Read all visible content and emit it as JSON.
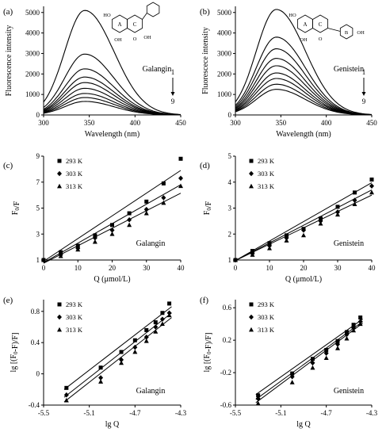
{
  "chart_data": [
    {
      "panel_label": "(a)",
      "type": "line",
      "xlabel": "Wavelength (nm)",
      "ylabel": "Fluorescence intensity",
      "compound": "Galangin",
      "xticks": [
        "300",
        "350",
        "400",
        "450"
      ],
      "yticks": [
        "0",
        "1000",
        "2000",
        "3000",
        "4000",
        "5000"
      ],
      "xlim": [
        300,
        450
      ],
      "ylim": [
        0,
        5300
      ],
      "arrow_start": "1",
      "arrow_end": "9",
      "peak_x": 345,
      "series": [
        {
          "peak": 5100
        },
        {
          "peak": 2970
        },
        {
          "peak": 2250
        },
        {
          "peak": 1850
        },
        {
          "peak": 1580
        },
        {
          "peak": 1300
        },
        {
          "peak": 1050
        },
        {
          "peak": 850
        },
        {
          "peak": 660
        }
      ]
    },
    {
      "panel_label": "(b)",
      "type": "line",
      "xlabel": "Wavelength (nm)",
      "ylabel": "Fluorescece intensity",
      "compound": "Genistein",
      "xticks": [
        "300",
        "350",
        "400",
        "450"
      ],
      "yticks": [
        "0",
        "1000",
        "2000",
        "3000",
        "4000",
        "5000"
      ],
      "xlim": [
        300,
        450
      ],
      "ylim": [
        0,
        5300
      ],
      "arrow_start": "1",
      "arrow_end": "9",
      "peak_x": 345,
      "series": [
        {
          "peak": 5150
        },
        {
          "peak": 3800
        },
        {
          "peak": 3230
        },
        {
          "peak": 2760
        },
        {
          "peak": 2400
        },
        {
          "peak": 2050
        },
        {
          "peak": 1780
        },
        {
          "peak": 1500
        },
        {
          "peak": 1250
        }
      ]
    },
    {
      "panel_label": "(c)",
      "type": "scatter",
      "xlabel": "Q (μmol/L)",
      "ylabel": "F0/F",
      "compound": "Galangin",
      "xticks": [
        "0",
        "10",
        "20",
        "30",
        "40"
      ],
      "yticks": [
        "1",
        "3",
        "5",
        "7",
        "9"
      ],
      "xlim": [
        0,
        40
      ],
      "ylim": [
        1,
        9
      ],
      "series": [
        {
          "name": "293 K",
          "marker": "square",
          "x": [
            0,
            5,
            10,
            15,
            20,
            25,
            30,
            35,
            40
          ],
          "y": [
            1,
            1.6,
            2.1,
            2.9,
            3.7,
            4.6,
            5.5,
            6.9,
            8.8
          ]
        },
        {
          "name": "303 K",
          "marker": "diamond",
          "x": [
            0,
            5,
            10,
            15,
            20,
            25,
            30,
            35,
            40
          ],
          "y": [
            1,
            1.4,
            1.9,
            2.7,
            3.3,
            4.1,
            4.9,
            5.8,
            7.3
          ]
        },
        {
          "name": "313 K",
          "marker": "triangle",
          "x": [
            0,
            5,
            10,
            15,
            20,
            25,
            30,
            35,
            40
          ],
          "y": [
            1,
            1.3,
            1.8,
            2.4,
            3.0,
            3.7,
            4.6,
            5.4,
            6.7
          ]
        }
      ],
      "fits": [
        [
          0.9,
          0.175
        ],
        [
          0.8,
          0.15
        ],
        [
          0.75,
          0.135
        ]
      ]
    },
    {
      "panel_label": "(d)",
      "type": "scatter",
      "xlabel": "Q (μmol/L)",
      "ylabel": "F0/F",
      "compound": "Genistein",
      "xticks": [
        "0",
        "10",
        "20",
        "30",
        "40"
      ],
      "yticks": [
        "1",
        "2",
        "3",
        "4",
        "5"
      ],
      "xlim": [
        0,
        40
      ],
      "ylim": [
        1,
        5
      ],
      "series": [
        {
          "name": "293 K",
          "marker": "square",
          "x": [
            0,
            5,
            10,
            15,
            20,
            25,
            30,
            35,
            40
          ],
          "y": [
            1,
            1.35,
            1.65,
            1.95,
            2.2,
            2.6,
            3.05,
            3.6,
            4.1
          ]
        },
        {
          "name": "303 K",
          "marker": "diamond",
          "x": [
            0,
            5,
            10,
            15,
            20,
            25,
            30,
            35,
            40
          ],
          "y": [
            1,
            1.25,
            1.55,
            1.85,
            2.15,
            2.5,
            2.85,
            3.3,
            3.85
          ]
        },
        {
          "name": "313 K",
          "marker": "triangle",
          "x": [
            0,
            5,
            10,
            15,
            20,
            25,
            30,
            35,
            40
          ],
          "y": [
            1,
            1.2,
            1.45,
            1.75,
            1.95,
            2.4,
            2.75,
            3.15,
            3.6
          ]
        }
      ],
      "fits": [
        [
          0.98,
          0.075
        ],
        [
          0.98,
          0.068
        ],
        [
          0.98,
          0.063
        ]
      ]
    },
    {
      "panel_label": "(e)",
      "type": "scatter",
      "xlabel": "lg Q",
      "ylabel": "lg [(F0-F)/F]",
      "compound": "Galangin",
      "xticks": [
        "-5.5",
        "-5.1",
        "-4.7",
        "-4.3"
      ],
      "yticks": [
        "-0.4",
        "0",
        "0.4",
        "0.8"
      ],
      "xlim": [
        -5.5,
        -4.3
      ],
      "ylim": [
        -0.4,
        0.95
      ],
      "series": [
        {
          "name": "293 K",
          "marker": "square",
          "x": [
            -5.3,
            -5.0,
            -4.82,
            -4.7,
            -4.6,
            -4.52,
            -4.46,
            -4.4
          ],
          "y": [
            -0.18,
            0.08,
            0.28,
            0.43,
            0.56,
            0.66,
            0.78,
            0.9
          ]
        },
        {
          "name": "303 K",
          "marker": "diamond",
          "x": [
            -5.3,
            -5.0,
            -4.82,
            -4.7,
            -4.6,
            -4.52,
            -4.46,
            -4.4
          ],
          "y": [
            -0.27,
            -0.05,
            0.18,
            0.34,
            0.47,
            0.6,
            0.7,
            0.78
          ]
        },
        {
          "name": "313 K",
          "marker": "triangle",
          "x": [
            -5.3,
            -5.0,
            -4.82,
            -4.7,
            -4.6,
            -4.52,
            -4.46,
            -4.4
          ],
          "y": [
            -0.34,
            -0.1,
            0.14,
            0.28,
            0.42,
            0.54,
            0.64,
            0.75
          ]
        }
      ],
      "fits": [
        [
          -5.32,
          -0.2,
          -4.38,
          0.86
        ],
        [
          -5.32,
          -0.3,
          -4.38,
          0.78
        ],
        [
          -5.32,
          -0.36,
          -4.38,
          0.72
        ]
      ]
    },
    {
      "panel_label": "(f)",
      "type": "scatter",
      "xlabel": "lg Q",
      "ylabel": "lg [(F0-F)/F]",
      "compound": "Genistein",
      "xticks": [
        "-5.5",
        "-5.1",
        "-4.7",
        "-4.3"
      ],
      "yticks": [
        "-0.6",
        "-0.2",
        "0.2",
        "0.6"
      ],
      "xlim": [
        -5.5,
        -4.3
      ],
      "ylim": [
        -0.6,
        0.7
      ],
      "series": [
        {
          "name": "293 K",
          "marker": "square",
          "x": [
            -5.3,
            -5.0,
            -4.82,
            -4.7,
            -4.6,
            -4.52,
            -4.46,
            -4.4
          ],
          "y": [
            -0.48,
            -0.21,
            -0.03,
            0.08,
            0.19,
            0.3,
            0.39,
            0.48
          ]
        },
        {
          "name": "303 K",
          "marker": "diamond",
          "x": [
            -5.3,
            -5.0,
            -4.82,
            -4.7,
            -4.6,
            -4.52,
            -4.46,
            -4.4
          ],
          "y": [
            -0.52,
            -0.25,
            -0.08,
            0.04,
            0.15,
            0.27,
            0.35,
            0.43
          ]
        },
        {
          "name": "313 K",
          "marker": "triangle",
          "x": [
            -5.3,
            -5.0,
            -4.82,
            -4.7,
            -4.6,
            -4.52,
            -4.46,
            -4.4
          ],
          "y": [
            -0.58,
            -0.32,
            -0.14,
            -0.02,
            0.1,
            0.22,
            0.32,
            0.4
          ]
        }
      ],
      "fits": [
        [
          -5.32,
          -0.47,
          -4.38,
          0.46
        ],
        [
          -5.32,
          -0.53,
          -4.38,
          0.43
        ],
        [
          -5.32,
          -0.57,
          -4.38,
          0.41
        ]
      ]
    }
  ],
  "structures": {
    "galangin": {
      "ring_labels": [
        "A",
        "C"
      ],
      "groups": [
        "HO",
        "OH",
        "OH",
        "O"
      ]
    },
    "genistein": {
      "ring_labels": [
        "A",
        "C",
        "B"
      ],
      "groups": [
        "HO",
        "OH",
        "O",
        "OH"
      ]
    }
  }
}
